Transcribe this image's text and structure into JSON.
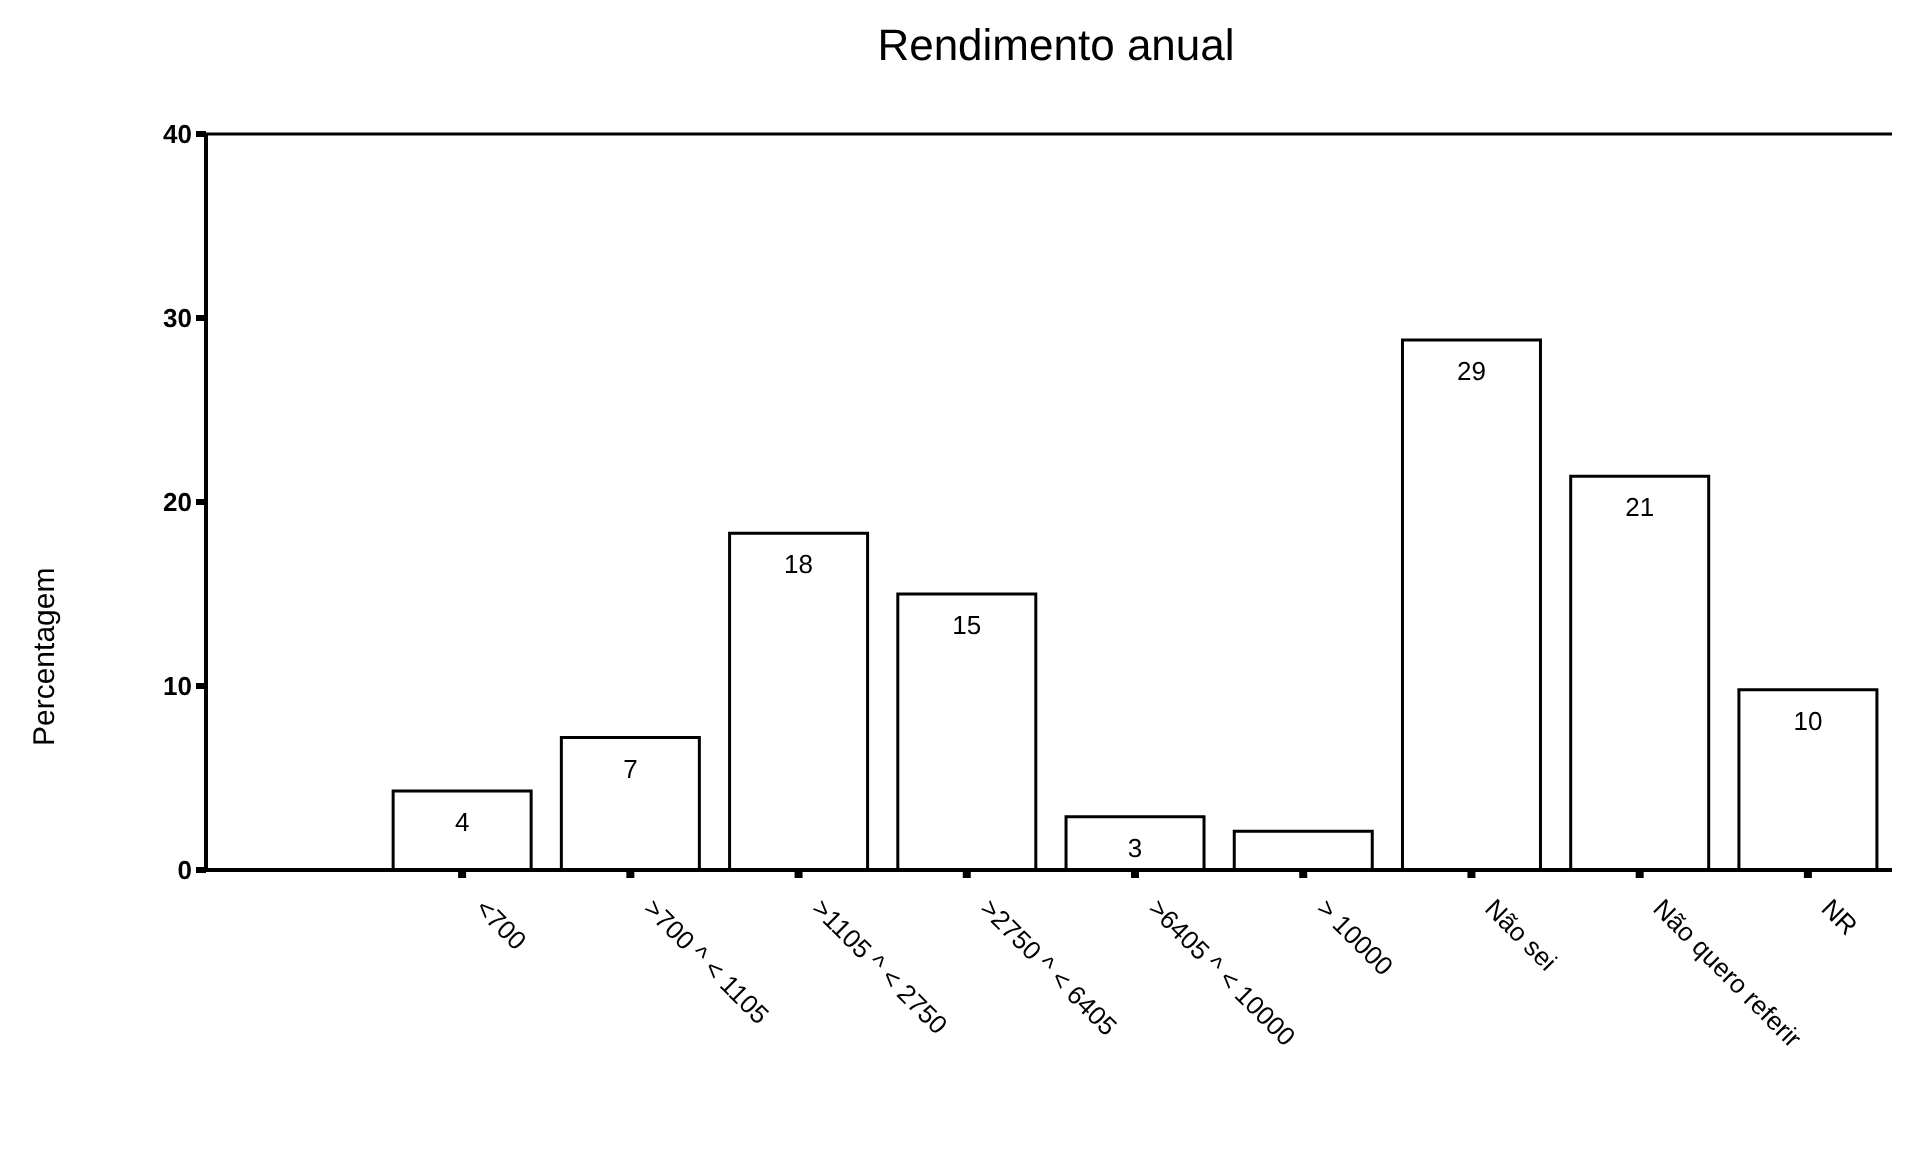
{
  "chart_data": {
    "type": "bar",
    "title": "Rendimento anual",
    "ylabel": "Percentagem",
    "categories": [
      "<700",
      ">700 ^ < 1105",
      ">1105 ^ < 2750",
      ">2750 ^ < 6405",
      ">6405 ^ < 10000",
      "> 10000",
      "Não sei",
      "Não quero referir",
      "NR"
    ],
    "values": [
      4.3,
      7.2,
      18.3,
      15.0,
      2.9,
      2.1,
      28.8,
      21.4,
      9.8
    ],
    "value_labels": [
      "4",
      "7",
      "18",
      "15",
      "3",
      null,
      "29",
      "21",
      "10"
    ],
    "color": "#ffffff",
    "ylim": [
      0,
      40
    ],
    "yticks": [
      0,
      10,
      20,
      30,
      40
    ],
    "grid": false
  }
}
